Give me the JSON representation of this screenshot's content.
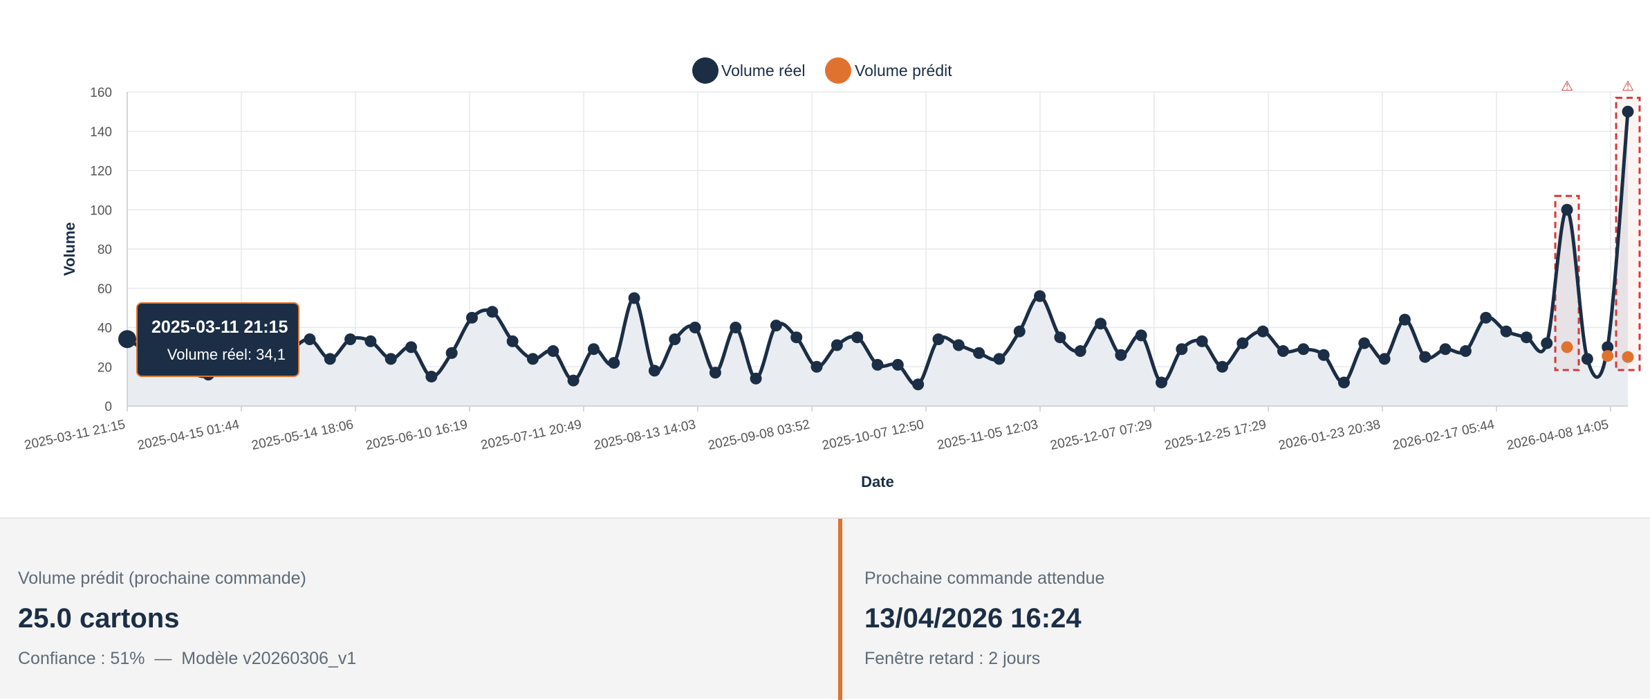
{
  "chart_data": {
    "type": "line",
    "xlabel": "Date",
    "ylabel": "Volume",
    "ylim": [
      0,
      160
    ],
    "y_ticks": [
      0,
      20,
      40,
      60,
      80,
      100,
      120,
      140,
      160
    ],
    "x_tick_labels": [
      "2025-03-11 21:15",
      "2025-04-15 01:44",
      "2025-05-14 18:06",
      "2025-06-10 16:19",
      "2025-07-11 20:49",
      "2025-08-13 14:03",
      "2025-09-08 03:52",
      "2025-10-07 12:50",
      "2025-11-05 12:03",
      "2025-12-07 07:29",
      "2025-12-25 17:29",
      "2026-01-23 20:38",
      "2026-02-17 05:44",
      "2026-04-08 14:05"
    ],
    "grid": true,
    "legend_position": "top-center",
    "series": [
      {
        "name": "Volume réel",
        "color": "#1b2e45",
        "fill": "area",
        "values": [
          34.1,
          28,
          24,
          18,
          16,
          32,
          37,
          22,
          28,
          34,
          24,
          34,
          33,
          24,
          30,
          15,
          27,
          45,
          48,
          33,
          24,
          28,
          13,
          29,
          22,
          55,
          18,
          34,
          40,
          17,
          40,
          14,
          41,
          35,
          20,
          31,
          35,
          21,
          21,
          11,
          34,
          31,
          27,
          24,
          38,
          56,
          35,
          28,
          42,
          26,
          36,
          12,
          29,
          33,
          20,
          32,
          38,
          28,
          29,
          26,
          12,
          32,
          24,
          44,
          25,
          29,
          28,
          45,
          38,
          35,
          32,
          100,
          24,
          30,
          150
        ]
      },
      {
        "name": "Volume prédit",
        "color": "#e07230",
        "points": [
          {
            "index": 71,
            "value": 30
          },
          {
            "index": 73,
            "value": 25.5
          },
          {
            "index": 74,
            "value": 25
          }
        ]
      }
    ],
    "anomalies": [
      {
        "index": 71,
        "marker": "⚠"
      },
      {
        "index": 74,
        "marker": "⚠"
      }
    ],
    "tooltip": {
      "index": 0,
      "title": "2025-03-11 21:15",
      "series_label": "Volume réel",
      "value_text": "34,1"
    }
  },
  "cards": {
    "predicted": {
      "label": "Volume prédit (prochaine commande)",
      "value": "25.0 cartons",
      "confidence_text": "Confiance : 51%",
      "separator": "—",
      "model_text": "Modèle v20260306_v1"
    },
    "next_order": {
      "label": "Prochaine commande attendue",
      "value": "13/04/2026 16:24",
      "window_text": "Fenêtre retard : 2 jours"
    }
  },
  "colors": {
    "primary": "#1b2e45",
    "accent": "#e07230",
    "anomaly": "#d23b3b",
    "grid": "#e6e8eb",
    "area_fill": "#e9edf1"
  }
}
